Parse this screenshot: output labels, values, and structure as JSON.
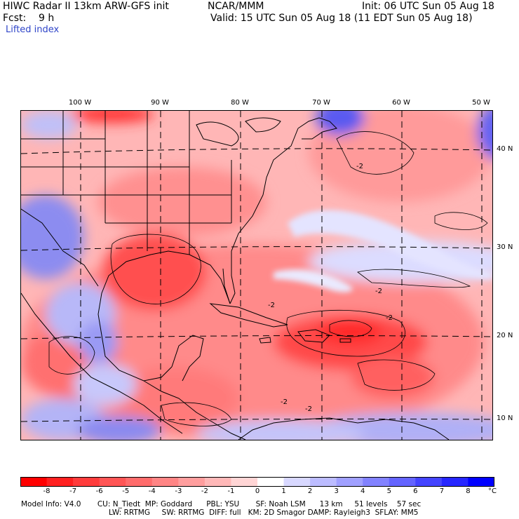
{
  "header": {
    "model": "HIWC Radar II 13km ARW-GFS init",
    "org": "NCAR/MMM",
    "init": "Init: 06 UTC Sun 05 Aug 18",
    "fcst": "Fcst:    9 h",
    "valid": "Valid: 15 UTC Sun 05 Aug 18 (11 EDT Sun 05 Aug 18)",
    "field": "Lifted index"
  },
  "map": {
    "lon_labels": [
      "100 W",
      "90 W",
      "80 W",
      "70 W",
      "60 W",
      "50 W"
    ],
    "lat_labels": [
      "40 N",
      "30 N",
      "20 N",
      "10 N"
    ],
    "contour_labels": [
      "-2",
      "-2",
      "-2",
      "-2",
      "-2",
      "-2"
    ],
    "colors": {
      "strong_negative": "#ff2020",
      "moderate_negative": "#ff7b7b",
      "weak_negative": "#ffc8c8",
      "neutral": "#ffffff",
      "weak_positive": "#c8c8ff",
      "strong_positive": "#3b3bf0"
    }
  },
  "colorbar": {
    "labels": [
      "-8",
      "-7",
      "-6",
      "-5",
      "-4",
      "-3",
      "-2",
      "-1",
      "0",
      "1",
      "2",
      "3",
      "4",
      "5",
      "6",
      "7",
      "8"
    ],
    "unit": "°C",
    "colors": [
      "#ff0000",
      "#ff2020",
      "#ff3c3c",
      "#ff5555",
      "#ff6c6c",
      "#ff8585",
      "#ff9e9e",
      "#ffb8b8",
      "#ffd5d5",
      "#ffffff",
      "#d8d8ff",
      "#bcbcff",
      "#a0a0ff",
      "#8282ff",
      "#6464ff",
      "#4444ff",
      "#2626ff",
      "#0000ff"
    ]
  },
  "footer": {
    "line1": "Model Info: V4.0       CU: N_Tiedt  MP: Goddard      PBL: YSU       SF: Noah LSM      13 km     51 levels    57 sec",
    "line2": "LW: RRTMG     SW: RRTMG  DIFF: full   KM: 2D Smagor DAMP: Rayleigh3  SFLAY: MM5"
  }
}
